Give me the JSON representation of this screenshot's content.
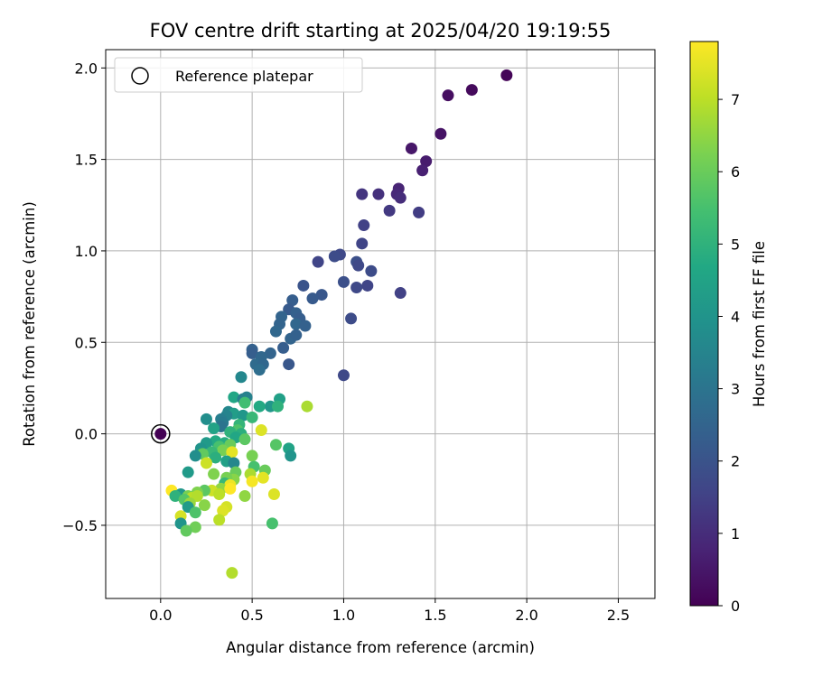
{
  "chart_data": {
    "type": "scatter",
    "title": "FOV centre drift starting at 2025/04/20 19:19:55",
    "xlabel": "Angular distance from reference (arcmin)",
    "ylabel": "Rotation from reference (arcmin)",
    "xlim": [
      -0.3,
      2.7
    ],
    "ylim": [
      -0.9,
      2.1
    ],
    "xticks": [
      "0.0",
      "0.5",
      "1.0",
      "1.5",
      "2.0",
      "2.5"
    ],
    "yticks": [
      "−0.5",
      "0.0",
      "0.5",
      "1.0",
      "1.5",
      "2.0"
    ],
    "grid": true,
    "legend": {
      "placement": "upper-left",
      "entries": [
        "Reference platepar"
      ]
    },
    "reference_point": {
      "x": 0.0,
      "y": 0.0
    },
    "colorbar": {
      "label": "Hours from first FF file",
      "range": [
        0,
        7.8
      ],
      "ticks": [
        "0",
        "1",
        "2",
        "3",
        "4",
        "5",
        "6",
        "7"
      ],
      "colormap": "viridis"
    },
    "points": [
      [
        1.89,
        1.96,
        0.1
      ],
      [
        1.7,
        1.88,
        0.2
      ],
      [
        1.57,
        1.85,
        0.3
      ],
      [
        1.53,
        1.64,
        0.4
      ],
      [
        1.37,
        1.56,
        0.5
      ],
      [
        1.45,
        1.49,
        0.6
      ],
      [
        1.43,
        1.44,
        0.7
      ],
      [
        1.3,
        1.34,
        0.8
      ],
      [
        1.29,
        1.31,
        0.9
      ],
      [
        1.31,
        1.29,
        1.0
      ],
      [
        1.19,
        1.31,
        1.1
      ],
      [
        1.1,
        1.31,
        1.2
      ],
      [
        1.25,
        1.22,
        1.3
      ],
      [
        1.41,
        1.21,
        1.4
      ],
      [
        1.11,
        1.14,
        1.5
      ],
      [
        1.1,
        1.04,
        1.6
      ],
      [
        0.98,
        0.98,
        1.7
      ],
      [
        0.95,
        0.97,
        1.8
      ],
      [
        1.07,
        0.94,
        1.9
      ],
      [
        0.86,
        0.94,
        1.6
      ],
      [
        1.08,
        0.92,
        1.7
      ],
      [
        1.15,
        0.89,
        1.8
      ],
      [
        1.0,
        0.83,
        1.9
      ],
      [
        1.13,
        0.81,
        1.6
      ],
      [
        1.07,
        0.8,
        1.7
      ],
      [
        0.78,
        0.81,
        2.0
      ],
      [
        0.88,
        0.76,
        2.1
      ],
      [
        1.31,
        0.77,
        1.5
      ],
      [
        0.83,
        0.74,
        2.2
      ],
      [
        0.72,
        0.73,
        2.3
      ],
      [
        0.7,
        0.68,
        2.2
      ],
      [
        0.74,
        0.66,
        2.4
      ],
      [
        0.66,
        0.64,
        2.5
      ],
      [
        0.76,
        0.63,
        2.3
      ],
      [
        1.04,
        0.63,
        1.8
      ],
      [
        0.74,
        0.6,
        2.6
      ],
      [
        0.65,
        0.6,
        2.5
      ],
      [
        0.79,
        0.59,
        2.4
      ],
      [
        0.63,
        0.56,
        2.6
      ],
      [
        0.71,
        0.52,
        2.5
      ],
      [
        0.74,
        0.54,
        2.4
      ],
      [
        0.67,
        0.47,
        2.3
      ],
      [
        0.5,
        0.46,
        2.4
      ],
      [
        0.5,
        0.44,
        2.3
      ],
      [
        0.6,
        0.44,
        2.5
      ],
      [
        0.55,
        0.42,
        2.6
      ],
      [
        0.52,
        0.38,
        2.7
      ],
      [
        0.56,
        0.38,
        2.6
      ],
      [
        0.7,
        0.38,
        2.1
      ],
      [
        0.54,
        0.35,
        2.8
      ],
      [
        1.0,
        0.32,
        1.7
      ],
      [
        0.44,
        0.31,
        3.6
      ],
      [
        0.4,
        0.2,
        4.6
      ],
      [
        0.45,
        0.19,
        3.3
      ],
      [
        0.47,
        0.2,
        3.4
      ],
      [
        0.65,
        0.19,
        4.4
      ],
      [
        0.46,
        0.17,
        5.4
      ],
      [
        0.8,
        0.15,
        6.8
      ],
      [
        0.6,
        0.15,
        4.1
      ],
      [
        0.64,
        0.15,
        5.0
      ],
      [
        0.54,
        0.15,
        4.7
      ],
      [
        0.37,
        0.12,
        3.6
      ],
      [
        0.4,
        0.11,
        4.3
      ],
      [
        0.36,
        0.1,
        3.5
      ],
      [
        0.45,
        0.1,
        4.1
      ],
      [
        0.5,
        0.09,
        5.2
      ],
      [
        0.33,
        0.08,
        3.3
      ],
      [
        0.25,
        0.08,
        3.8
      ],
      [
        0.34,
        0.06,
        3.2
      ],
      [
        0.43,
        0.05,
        5.1
      ],
      [
        0.33,
        0.04,
        3.0
      ],
      [
        0.29,
        0.03,
        4.5
      ],
      [
        0.42,
        0.02,
        5.6
      ],
      [
        0.38,
        0.01,
        5.0
      ],
      [
        0.55,
        0.02,
        7.4
      ],
      [
        0.44,
        0.0,
        4.9
      ],
      [
        0.41,
        -0.02,
        4.6
      ],
      [
        0.46,
        -0.03,
        5.8
      ],
      [
        0.3,
        -0.04,
        4.7
      ],
      [
        0.25,
        -0.05,
        4.2
      ],
      [
        0.35,
        -0.05,
        4.8
      ],
      [
        0.63,
        -0.06,
        5.7
      ],
      [
        0.38,
        -0.06,
        6.0
      ],
      [
        0.7,
        -0.08,
        4.5
      ],
      [
        0.32,
        -0.07,
        5.5
      ],
      [
        0.22,
        -0.08,
        4.0
      ],
      [
        0.34,
        -0.09,
        6.2
      ],
      [
        0.39,
        -0.1,
        7.5
      ],
      [
        0.28,
        -0.1,
        5.2
      ],
      [
        0.23,
        -0.11,
        5.9
      ],
      [
        0.5,
        -0.12,
        6.2
      ],
      [
        0.71,
        -0.12,
        4.0
      ],
      [
        0.19,
        -0.12,
        3.8
      ],
      [
        0.3,
        -0.13,
        4.9
      ],
      [
        0.36,
        -0.15,
        4.4
      ],
      [
        0.4,
        -0.16,
        3.6
      ],
      [
        0.25,
        -0.16,
        7.2
      ],
      [
        0.51,
        -0.18,
        5.5
      ],
      [
        0.15,
        -0.21,
        4.2
      ],
      [
        0.29,
        -0.22,
        6.3
      ],
      [
        0.41,
        -0.21,
        6.0
      ],
      [
        0.57,
        -0.2,
        6.0
      ],
      [
        0.49,
        -0.22,
        6.8
      ],
      [
        0.56,
        -0.24,
        7.5
      ],
      [
        0.4,
        -0.25,
        6.4
      ],
      [
        0.36,
        -0.24,
        6.2
      ],
      [
        0.5,
        -0.26,
        7.7
      ],
      [
        0.35,
        -0.27,
        5.2
      ],
      [
        0.38,
        -0.28,
        7.6
      ],
      [
        0.33,
        -0.3,
        6.5
      ],
      [
        0.38,
        -0.3,
        7.8
      ],
      [
        0.28,
        -0.31,
        7.2
      ],
      [
        0.24,
        -0.31,
        5.8
      ],
      [
        0.06,
        -0.31,
        7.8
      ],
      [
        0.2,
        -0.32,
        6.3
      ],
      [
        0.32,
        -0.33,
        7.0
      ],
      [
        0.11,
        -0.33,
        4.1
      ],
      [
        0.08,
        -0.34,
        5.0
      ],
      [
        0.15,
        -0.34,
        6.2
      ],
      [
        0.46,
        -0.34,
        6.5
      ],
      [
        0.62,
        -0.33,
        7.4
      ],
      [
        0.17,
        -0.35,
        7.0
      ],
      [
        0.2,
        -0.34,
        6.9
      ],
      [
        0.13,
        -0.36,
        5.7
      ],
      [
        0.16,
        -0.38,
        6.6
      ],
      [
        0.24,
        -0.39,
        6.4
      ],
      [
        0.15,
        -0.4,
        4.2
      ],
      [
        0.36,
        -0.4,
        7.3
      ],
      [
        0.34,
        -0.42,
        7.4
      ],
      [
        0.19,
        -0.43,
        5.6
      ],
      [
        0.11,
        -0.45,
        7.3
      ],
      [
        0.32,
        -0.47,
        7.0
      ],
      [
        0.11,
        -0.49,
        4.0
      ],
      [
        0.61,
        -0.49,
        5.5
      ],
      [
        0.19,
        -0.51,
        6.1
      ],
      [
        0.14,
        -0.53,
        5.9
      ],
      [
        0.39,
        -0.76,
        6.9
      ],
      [
        0.0,
        0.0,
        0.0
      ]
    ]
  }
}
